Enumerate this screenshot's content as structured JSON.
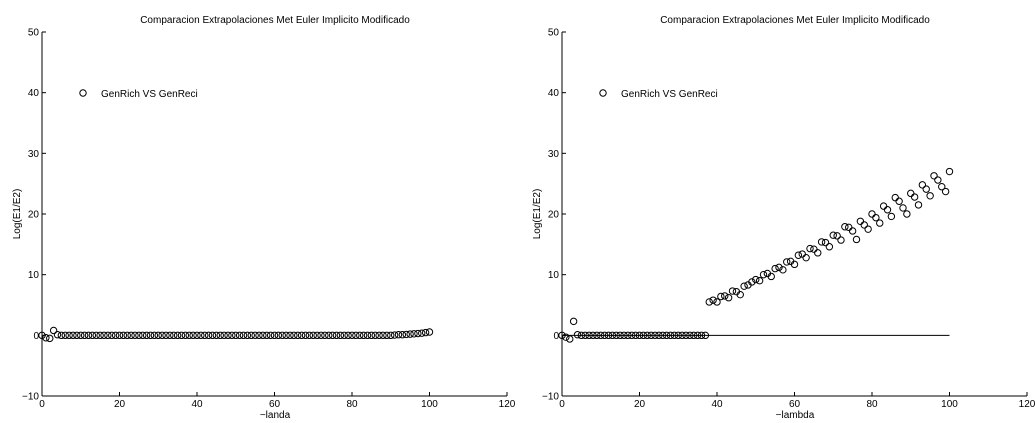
{
  "chart_data": [
    {
      "type": "scatter",
      "title": "Comparacion Extrapolaciones Met Euler Implicito Modificado",
      "xlabel": "−landa",
      "ylabel": "Log(E1/E2)",
      "xlim": [
        0,
        120
      ],
      "ylim": [
        -10,
        50
      ],
      "x_ticks": [
        "0",
        "20",
        "40",
        "60",
        "80",
        "100",
        "120"
      ],
      "y_ticks": [
        "−10",
        "0",
        "10",
        "20",
        "30",
        "40",
        "50"
      ],
      "legend": "top-left",
      "series": [
        {
          "name": "GenRich VS GenReci",
          "marker": "circle",
          "x": [
            1,
            2,
            3,
            4,
            5,
            6,
            7,
            8,
            9,
            10,
            11,
            12,
            13,
            14,
            15,
            16,
            17,
            18,
            19,
            20,
            21,
            22,
            23,
            24,
            25,
            26,
            27,
            28,
            29,
            30,
            31,
            32,
            33,
            34,
            35,
            36,
            37,
            38,
            39,
            40,
            41,
            42,
            43,
            44,
            45,
            46,
            47,
            48,
            49,
            50,
            51,
            52,
            53,
            54,
            55,
            56,
            57,
            58,
            59,
            60,
            61,
            62,
            63,
            64,
            65,
            66,
            67,
            68,
            69,
            70,
            71,
            72,
            73,
            74,
            75,
            76,
            77,
            78,
            79,
            80,
            81,
            82,
            83,
            84,
            85,
            86,
            87,
            88,
            89,
            90,
            91,
            92,
            93,
            94,
            95,
            96,
            97,
            98,
            99,
            100
          ],
          "y": [
            -0.4,
            -0.5,
            0.8,
            0.1,
            0,
            0,
            0,
            0,
            0,
            0,
            0,
            0,
            0,
            0,
            0,
            0,
            0,
            0,
            0,
            0,
            0,
            0,
            0,
            0,
            0,
            0,
            0,
            0,
            0,
            0,
            0,
            0,
            0,
            0,
            0,
            0,
            0,
            0,
            0,
            0,
            0,
            0,
            0,
            0,
            0,
            0,
            0,
            0,
            0,
            0,
            0,
            0,
            0,
            0,
            0,
            0,
            0,
            0,
            0,
            0,
            0,
            0,
            0,
            0,
            0,
            0,
            0,
            0,
            0,
            0,
            0,
            0,
            0,
            0,
            0,
            0,
            0,
            0,
            0,
            0,
            0,
            0,
            0,
            0,
            0,
            0,
            0,
            0,
            0,
            0,
            0.05,
            0.1,
            0.1,
            0.15,
            0.2,
            0.25,
            0.3,
            0.35,
            0.45,
            0.55
          ]
        }
      ],
      "extra_points": [
        {
          "x": 0,
          "y": 0
        }
      ],
      "zero_line": false
    },
    {
      "type": "scatter",
      "title": "Comparacion Extrapolaciones Met Euler Implicito Modificado",
      "xlabel": "−lambda",
      "ylabel": "Log(E1/E2)",
      "xlim": [
        0,
        120
      ],
      "ylim": [
        -10,
        50
      ],
      "x_ticks": [
        "0",
        "20",
        "40",
        "60",
        "80",
        "100",
        "120"
      ],
      "y_ticks": [
        "−10",
        "0",
        "10",
        "20",
        "30",
        "40",
        "50"
      ],
      "legend": "top-left",
      "series": [
        {
          "name": "GenRich VS GenReci",
          "marker": "circle",
          "x": [
            1,
            2,
            3,
            4,
            5,
            6,
            7,
            8,
            9,
            10,
            11,
            12,
            13,
            14,
            15,
            16,
            17,
            18,
            19,
            20,
            21,
            22,
            23,
            24,
            25,
            26,
            27,
            28,
            29,
            30,
            31,
            32,
            33,
            34,
            35,
            36,
            37,
            38,
            39,
            40,
            41,
            42,
            43,
            44,
            45,
            46,
            47,
            48,
            49,
            50,
            51,
            52,
            53,
            54,
            55,
            56,
            57,
            58,
            59,
            60,
            61,
            62,
            63,
            64,
            65,
            66,
            67,
            68,
            69,
            70,
            71,
            72,
            73,
            74,
            75,
            76,
            77,
            78,
            79,
            80,
            81,
            82,
            83,
            84,
            85,
            86,
            87,
            88,
            89,
            90,
            91,
            92,
            93,
            94,
            95,
            96,
            97,
            98,
            99,
            100
          ],
          "y": [
            -0.3,
            -0.6,
            2.3,
            0.1,
            0,
            0,
            0,
            0,
            0,
            0,
            0,
            0,
            0,
            0,
            0,
            0,
            0,
            0,
            0,
            0,
            0,
            0,
            0,
            0,
            0,
            0,
            0,
            0,
            0,
            0,
            0,
            0,
            0,
            0,
            0,
            0,
            0,
            5.5,
            5.8,
            5.5,
            6.4,
            6.5,
            6.2,
            7.3,
            7.2,
            6.7,
            8.1,
            8.3,
            8.8,
            9.2,
            9.0,
            10.0,
            10.2,
            9.7,
            11.0,
            11.2,
            10.8,
            12.1,
            12.2,
            11.7,
            13.2,
            13.4,
            12.8,
            14.3,
            14.2,
            13.6,
            15.4,
            15.3,
            14.6,
            16.5,
            16.4,
            15.7,
            17.9,
            17.8,
            17.2,
            15.8,
            18.8,
            18.2,
            17.5,
            20.0,
            19.4,
            18.5,
            21.3,
            20.7,
            19.6,
            22.7,
            22.1,
            21.0,
            20.0,
            23.4,
            22.8,
            21.5,
            24.8,
            24.1,
            23.0,
            26.3,
            25.6,
            24.5,
            23.7,
            27.0
          ]
        }
      ],
      "extra_points": [
        {
          "x": 0,
          "y": 0
        }
      ],
      "zero_line": true
    }
  ]
}
